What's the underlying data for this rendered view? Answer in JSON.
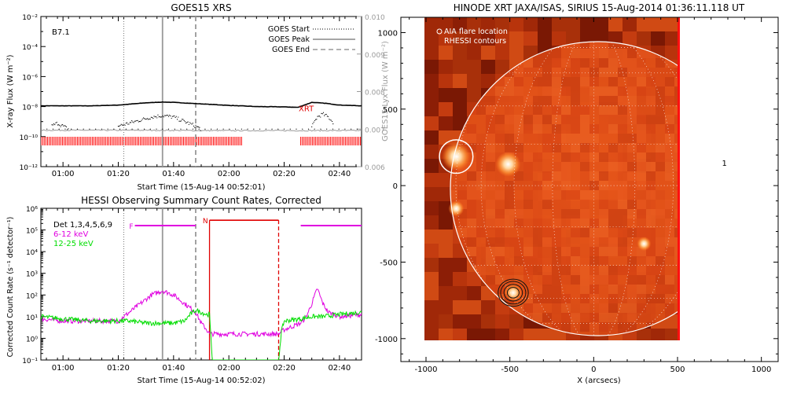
{
  "chart_data": [
    {
      "id": "goes",
      "type": "line",
      "title": "GOES15 XRS",
      "xlabel": "Start Time (15-Aug-14 00:52:01)",
      "ylabel": "X-ray Flux (W m^-2)",
      "ylabel_html": "X-ray Flux (W m⁻²)",
      "y2label": "GOES15 Lyx Flux (W m^-2)",
      "y2label_html": "GOES15 Lyx Flux (W m⁻²)",
      "panel_label": "B7.1",
      "xlim": [
        52,
        168
      ],
      "xticks": [
        60,
        80,
        100,
        120,
        140,
        160
      ],
      "xticklabels": [
        "01:00",
        "01:20",
        "01:40",
        "02:00",
        "02:20",
        "02:40"
      ],
      "ylim_log": [
        -12,
        -2
      ],
      "yticks_log": [
        -12,
        -10,
        -8,
        -6,
        -4,
        -2
      ],
      "yticklabels": [
        "10⁻¹²",
        "10⁻¹⁰",
        "10⁻⁸",
        "10⁻⁶",
        "10⁻⁴",
        "10⁻²"
      ],
      "y2lim": [
        0.006,
        0.01
      ],
      "y2ticks": [
        0.006,
        0.007,
        0.008,
        0.009,
        0.01
      ],
      "y2ticklabels": [
        "0.006",
        "0.007",
        "0.008",
        "0.009",
        "0.010"
      ],
      "legend": [
        {
          "label": "GOES Start",
          "style": "dotted"
        },
        {
          "label": "GOES Peak",
          "style": "solid"
        },
        {
          "label": "GOES End",
          "style": "dashed"
        }
      ],
      "event_lines": {
        "start": 82,
        "peak": 96,
        "end": 108
      },
      "annotation": {
        "text": "XRT",
        "x": 148,
        "log_y": -8.1
      },
      "series": [
        {
          "name": "Long channel",
          "x": [
            52,
            60,
            70,
            80,
            90,
            96,
            100,
            110,
            120,
            130,
            140,
            145,
            150,
            155,
            160,
            168
          ],
          "log_y": [
            -7.95,
            -7.95,
            -7.95,
            -7.9,
            -7.75,
            -7.7,
            -7.72,
            -7.82,
            -7.92,
            -8.0,
            -8.02,
            -8.05,
            -7.72,
            -7.78,
            -7.9,
            -7.95
          ]
        },
        {
          "name": "Lyman-alpha",
          "x": [
            52,
            70,
            90,
            110,
            130,
            150,
            168
          ],
          "y": [
            0.00697,
            0.00697,
            0.00697,
            0.00696,
            0.00696,
            0.00696,
            0.00696
          ]
        },
        {
          "name": "Short channel (dotted)",
          "x": [
            56,
            58,
            60,
            62,
            80,
            84,
            88,
            92,
            96,
            100,
            104,
            108,
            110,
            150,
            151,
            152,
            154,
            156,
            158
          ],
          "log_y": [
            -9.3,
            -9.1,
            -9.3,
            -9.5,
            -9.3,
            -9.1,
            -8.9,
            -8.7,
            -8.6,
            -8.7,
            -9.0,
            -9.3,
            -9.5,
            -9.4,
            -9.0,
            -8.7,
            -8.5,
            -8.7,
            -9.1
          ]
        },
        {
          "name": "Floor (dotted)",
          "x": [
            52,
            168
          ],
          "log_y": [
            -9.5,
            -9.5
          ]
        }
      ],
      "coverage_bars": [
        [
          52,
          125
        ],
        [
          146,
          168
        ]
      ]
    },
    {
      "id": "hessi",
      "type": "line",
      "title": "HESSI Observing Summary Count Rates, Corrected",
      "xlabel": "Start Time (15-Aug-14 00:52:02)",
      "ylabel": "Corrected Count Rate (s^-1 detector^-1)",
      "ylabel_html": "Corrected Count Rate (s⁻¹ detector⁻¹)",
      "xlim": [
        52,
        168
      ],
      "xticks": [
        60,
        80,
        100,
        120,
        140,
        160
      ],
      "xticklabels": [
        "01:00",
        "01:20",
        "01:40",
        "02:00",
        "02:20",
        "02:40"
      ],
      "ylim_log": [
        -1,
        6
      ],
      "yticks_log": [
        -1,
        0,
        1,
        2,
        3,
        4,
        5,
        6
      ],
      "yticklabels": [
        "10⁻¹",
        "10⁰",
        "10¹",
        "10²",
        "10³",
        "10⁴",
        "10⁵",
        "10⁶"
      ],
      "legend": [
        {
          "label": "Det 1,3,4,5,6,9",
          "color": "#000000"
        },
        {
          "label": "6-12 keV",
          "color": "#e000e0"
        },
        {
          "label": "12-25 keV",
          "color": "#00dd00"
        }
      ],
      "flag_labels": [
        {
          "text": "F",
          "x": 86,
          "log_y": 5.2,
          "color": "#e000e0"
        },
        {
          "text": "N",
          "x": 113,
          "log_y": 5.45,
          "color": "#e00000"
        }
      ],
      "event_lines": {
        "start": 82,
        "peak": 96,
        "end": 108
      },
      "night_interval": [
        113,
        138
      ],
      "attenuator_segments": [
        [
          86,
          108
        ],
        [
          146,
          168
        ]
      ],
      "series": [
        {
          "name": "6-12 keV",
          "color": "#e000e0",
          "x": [
            52,
            60,
            70,
            80,
            82,
            88,
            92,
            96,
            100,
            104,
            108,
            110,
            112,
            113,
            138,
            140,
            146,
            148,
            150,
            152,
            154,
            156,
            160,
            168
          ],
          "log_y": [
            0.9,
            0.8,
            0.8,
            0.8,
            1.0,
            1.6,
            2.0,
            2.2,
            2.0,
            1.6,
            1.2,
            0.7,
            0.4,
            0.2,
            0.2,
            0.4,
            0.7,
            1.0,
            1.6,
            2.3,
            1.6,
            1.2,
            1.0,
            1.1
          ]
        },
        {
          "name": "12-25 keV",
          "color": "#00dd00",
          "x": [
            52,
            60,
            70,
            80,
            84,
            90,
            96,
            100,
            104,
            106,
            108,
            110,
            112,
            113,
            114,
            138,
            139,
            140,
            146,
            150,
            154,
            160,
            168
          ],
          "log_y": [
            1.0,
            0.9,
            0.8,
            0.8,
            0.8,
            0.7,
            0.7,
            0.7,
            0.8,
            1.1,
            1.3,
            1.2,
            1.1,
            1.1,
            -1.0,
            -1.0,
            0.3,
            0.8,
            0.9,
            1.0,
            1.0,
            1.1,
            1.2
          ]
        }
      ]
    },
    {
      "id": "xrt",
      "type": "heatmap",
      "title": "HINODE XRT JAXA/ISAS, SIRIUS 15-Aug-2014 01:36:11.118 UT",
      "xlabel": "X (arcsecs)",
      "ylabel": "",
      "xlim": [
        -1150,
        1100
      ],
      "ylim": [
        -1150,
        1100
      ],
      "xticks": [
        -1000,
        -500,
        0,
        500,
        1000
      ],
      "xticklabels": [
        "-1000",
        "-500",
        "0",
        "500",
        "1000"
      ],
      "yticks": [
        -1000,
        -500,
        0,
        500,
        1000
      ],
      "yticklabels": [
        "-1000",
        "-500",
        "0",
        "500",
        "1000"
      ],
      "legend": [
        {
          "label": "AIA flare location",
          "marker": "circle"
        },
        {
          "label": "RHESSI contours",
          "marker": "none"
        }
      ],
      "image_extent": {
        "x": [
          -1100,
          520
        ],
        "y": [
          -970,
          1050
        ]
      },
      "solar_radius": 950,
      "flare_circle": {
        "x": -820,
        "y": 190,
        "r": 100
      },
      "rhessi_contours": {
        "x": -480,
        "y": -700,
        "radii": [
          35,
          55,
          75,
          90
        ]
      },
      "bright_regions": [
        {
          "x": -820,
          "y": 190
        },
        {
          "x": -510,
          "y": 140
        },
        {
          "x": -820,
          "y": -150
        },
        {
          "x": -480,
          "y": -700
        },
        {
          "x": 300,
          "y": -380
        }
      ],
      "stray_label": {
        "text": "1",
        "x": 780,
        "y": 150
      }
    }
  ]
}
